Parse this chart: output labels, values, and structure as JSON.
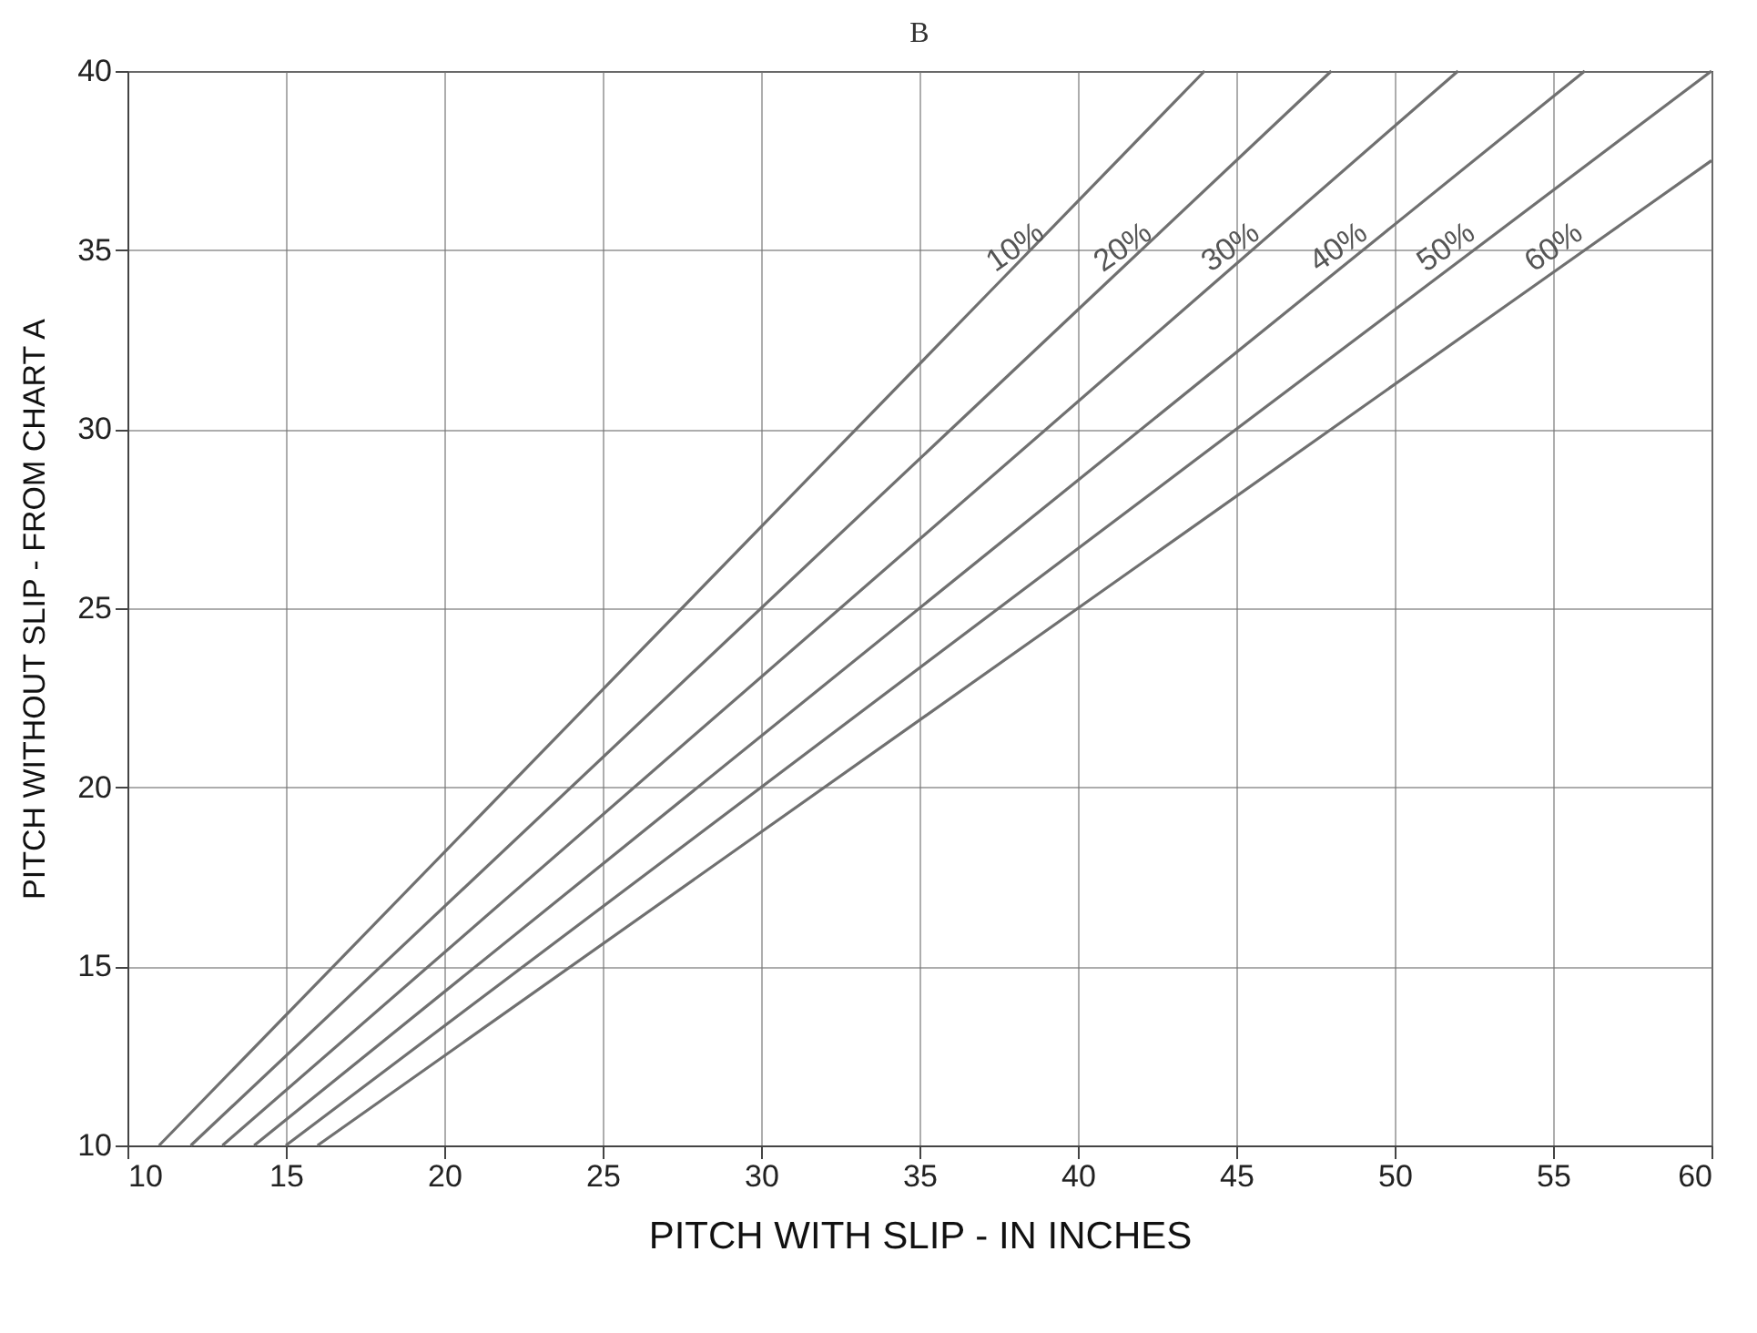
{
  "chart_data": {
    "type": "line",
    "title": "B",
    "xlabel": "PITCH WITH SLIP - IN INCHES",
    "ylabel": "PITCH WITHOUT SLIP - FROM CHART A",
    "xlim": [
      10,
      60
    ],
    "ylim": [
      10,
      40
    ],
    "xticks": [
      10,
      15,
      20,
      25,
      30,
      35,
      40,
      45,
      50,
      55,
      60
    ],
    "yticks": [
      10,
      15,
      20,
      25,
      30,
      35,
      40
    ],
    "grid": true,
    "legend": false,
    "marker": "none",
    "line_style": "solid",
    "series": [
      {
        "name": "10%",
        "color": "#707070",
        "x": [
          11,
          37.4,
          44
        ],
        "values": [
          10,
          34,
          40
        ]
      },
      {
        "name": "20%",
        "color": "#707070",
        "x": [
          12,
          40.8,
          48
        ],
        "values": [
          10,
          34,
          40
        ]
      },
      {
        "name": "30%",
        "color": "#707070",
        "x": [
          13,
          44.2,
          52
        ],
        "values": [
          10,
          34,
          40
        ]
      },
      {
        "name": "40%",
        "color": "#707070",
        "x": [
          14,
          47.6,
          56
        ],
        "values": [
          10,
          34,
          40
        ]
      },
      {
        "name": "50%",
        "color": "#707070",
        "x": [
          15,
          51,
          60
        ],
        "values": [
          10,
          34,
          40
        ]
      },
      {
        "name": "60%",
        "color": "#707070",
        "x": [
          16,
          54.4,
          60
        ],
        "values": [
          10,
          34,
          37.5
        ]
      }
    ]
  }
}
